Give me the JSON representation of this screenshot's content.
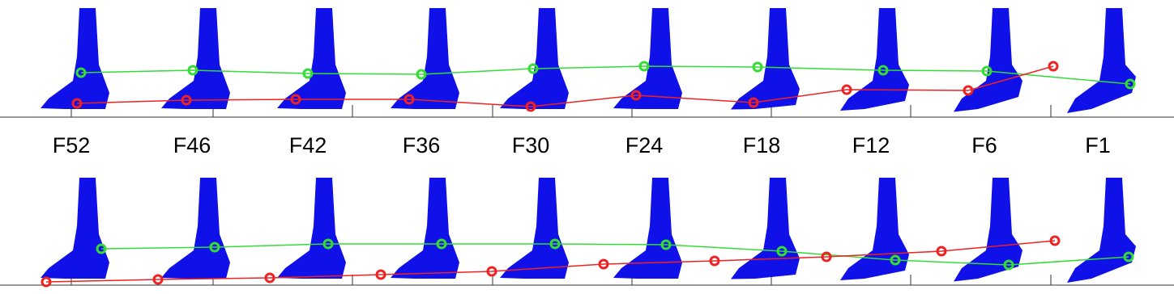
{
  "frames": {
    "labels": [
      "F52",
      "F46",
      "F42",
      "F36",
      "F30",
      "F24",
      "F18",
      "F12",
      "F6",
      "F1"
    ]
  }
}
